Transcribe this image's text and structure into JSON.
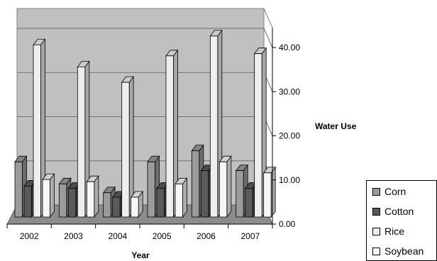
{
  "chart_data": {
    "type": "bar",
    "style": "3d-clustered-column",
    "categories": [
      "2002",
      "2003",
      "2004",
      "2005",
      "2006",
      "2007"
    ],
    "series": [
      {
        "name": "Corn",
        "color": "#9b9b9b",
        "values": [
          12.5,
          7.5,
          5.5,
          12.5,
          15.0,
          10.5
        ]
      },
      {
        "name": "Cotton",
        "color": "#5a5a5a",
        "values": [
          7.0,
          6.5,
          4.5,
          6.5,
          10.5,
          6.5
        ]
      },
      {
        "name": "Rice",
        "color": "#eeeeee",
        "values": [
          39.0,
          34.0,
          30.5,
          36.5,
          41.0,
          37.0
        ]
      },
      {
        "name": "Soybean",
        "color": "#f7f7f7",
        "values": [
          8.5,
          8.0,
          4.5,
          7.5,
          12.5,
          10.0
        ]
      }
    ],
    "ylim": [
      0,
      40
    ],
    "yticks": [
      "0.00",
      "10.00",
      "20.00",
      "30.00",
      "40.00"
    ],
    "xlabel": "Year",
    "ylabel": "Water Use",
    "grid": true,
    "legend_position": "bottom-right"
  }
}
